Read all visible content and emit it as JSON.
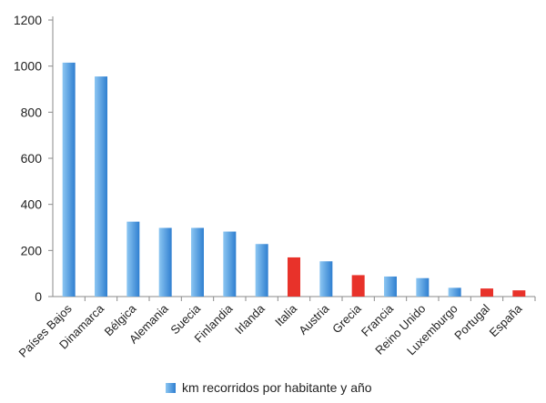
{
  "chart_data": {
    "type": "bar",
    "title": "",
    "xlabel": "",
    "ylabel": "",
    "ylim": [
      0,
      1200
    ],
    "yticks": [
      0,
      200,
      400,
      600,
      800,
      1000,
      1200
    ],
    "grid": false,
    "legend_position": "bottom",
    "categories": [
      "Países Bajos",
      "Dinamarca",
      "Bélgica",
      "Alemania",
      "Suecia",
      "Finlandia",
      "Irlanda",
      "Italia",
      "Austria",
      "Grecia",
      "Francia",
      "Reino Unido",
      "Luxemburgo",
      "Portugal",
      "España"
    ],
    "series": [
      {
        "name": "km recorridos por habitante y año",
        "values": [
          1015,
          955,
          325,
          298,
          298,
          282,
          228,
          170,
          153,
          93,
          87,
          80,
          38,
          35,
          27
        ]
      }
    ],
    "highlighted": [
      "Italia",
      "Grecia",
      "Portugal",
      "España"
    ],
    "colors": {
      "bar_light": "#8cc6f2",
      "bar_dark": "#2f7fd0",
      "highlight": "#e8322a",
      "axis": "#8a8a8a"
    }
  }
}
